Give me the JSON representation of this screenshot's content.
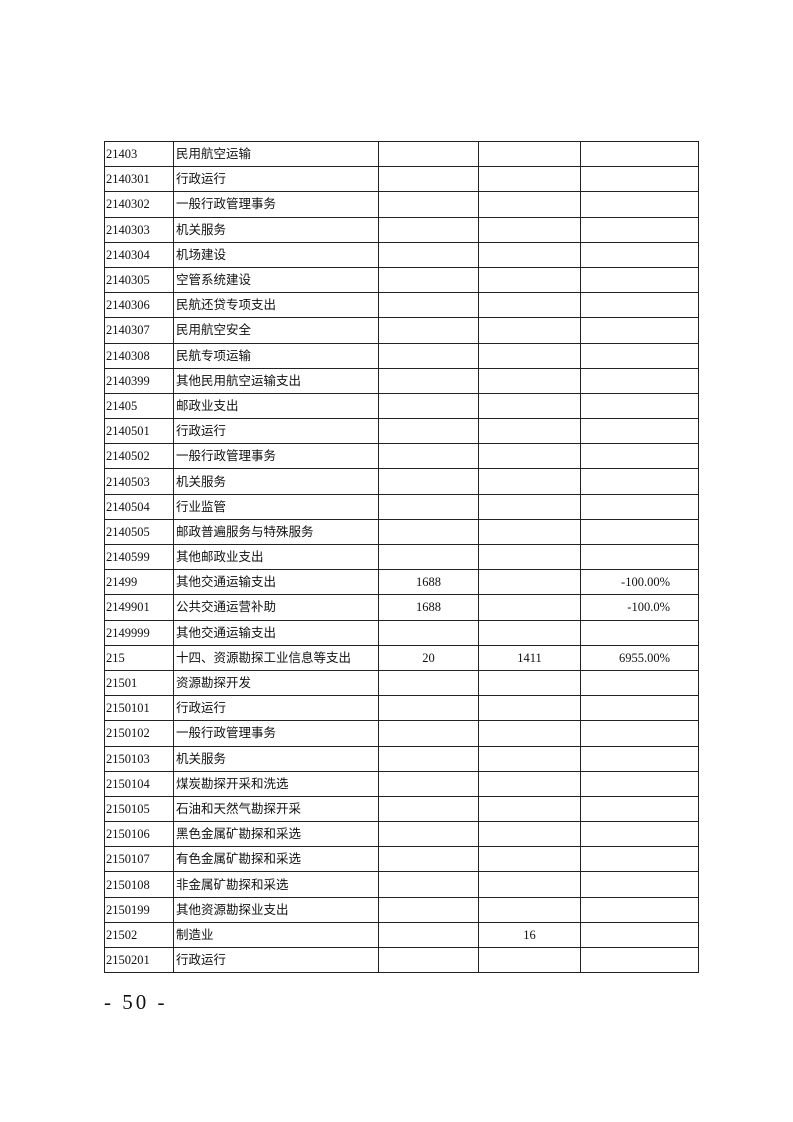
{
  "table": {
    "rows": [
      [
        "21403",
        "民用航空运输",
        "",
        "",
        ""
      ],
      [
        "2140301",
        "行政运行",
        "",
        "",
        ""
      ],
      [
        "2140302",
        "一般行政管理事务",
        "",
        "",
        ""
      ],
      [
        "2140303",
        "机关服务",
        "",
        "",
        ""
      ],
      [
        "2140304",
        "机场建设",
        "",
        "",
        ""
      ],
      [
        "2140305",
        "空管系统建设",
        "",
        "",
        ""
      ],
      [
        "2140306",
        "民航还贷专项支出",
        "",
        "",
        ""
      ],
      [
        "2140307",
        "民用航空安全",
        "",
        "",
        ""
      ],
      [
        "2140308",
        "民航专项运输",
        "",
        "",
        ""
      ],
      [
        "2140399",
        "其他民用航空运输支出",
        "",
        "",
        ""
      ],
      [
        "21405",
        "邮政业支出",
        "",
        "",
        ""
      ],
      [
        "2140501",
        "行政运行",
        "",
        "",
        ""
      ],
      [
        "2140502",
        "一般行政管理事务",
        "",
        "",
        ""
      ],
      [
        "2140503",
        "机关服务",
        "",
        "",
        ""
      ],
      [
        "2140504",
        "行业监管",
        "",
        "",
        ""
      ],
      [
        "2140505",
        "邮政普遍服务与特殊服务",
        "",
        "",
        ""
      ],
      [
        "2140599",
        "其他邮政业支出",
        "",
        "",
        ""
      ],
      [
        "21499",
        "其他交通运输支出",
        "1688",
        "",
        "-100.00%"
      ],
      [
        "2149901",
        "公共交通运营补助",
        "1688",
        "",
        "-100.0%"
      ],
      [
        "2149999",
        "其他交通运输支出",
        "",
        "",
        ""
      ],
      [
        "215",
        "十四、资源勘探工业信息等支出",
        "20",
        "1411",
        "6955.00%"
      ],
      [
        "21501",
        "资源勘探开发",
        "",
        "",
        ""
      ],
      [
        "2150101",
        "行政运行",
        "",
        "",
        ""
      ],
      [
        "2150102",
        "一般行政管理事务",
        "",
        "",
        ""
      ],
      [
        "2150103",
        "机关服务",
        "",
        "",
        ""
      ],
      [
        "2150104",
        "煤炭勘探开采和洗选",
        "",
        "",
        ""
      ],
      [
        "2150105",
        "石油和天然气勘探开采",
        "",
        "",
        ""
      ],
      [
        "2150106",
        "黑色金属矿勘探和采选",
        "",
        "",
        ""
      ],
      [
        "2150107",
        "有色金属矿勘探和采选",
        "",
        "",
        ""
      ],
      [
        "2150108",
        "非金属矿勘探和采选",
        "",
        "",
        ""
      ],
      [
        "2150199",
        "其他资源勘探业支出",
        "",
        "",
        ""
      ],
      [
        "21502",
        "制造业",
        "",
        "16",
        ""
      ],
      [
        "2150201",
        "行政运行",
        "",
        "",
        ""
      ]
    ]
  },
  "footer": {
    "page_number": "- 50 -"
  }
}
